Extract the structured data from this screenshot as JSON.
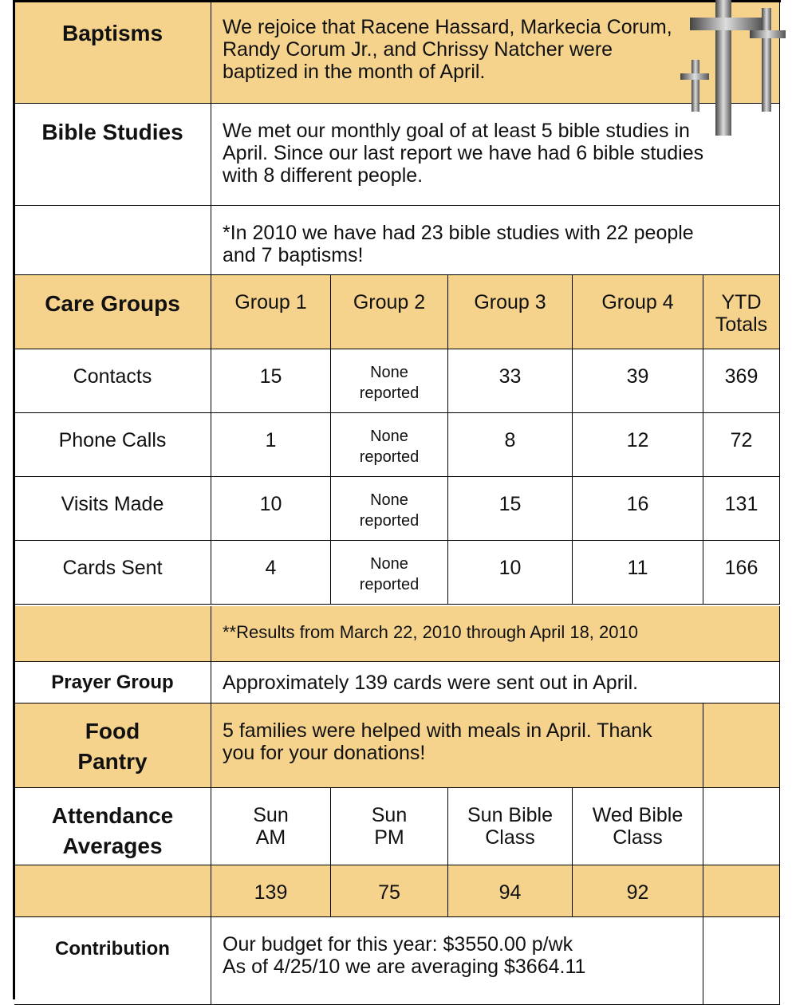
{
  "baptisms": {
    "label": "Baptisms",
    "text": "We rejoice that Racene Hassard, Markecia Corum, Randy Corum Jr., and Chrissy Natcher were baptized in the month of April."
  },
  "bible_studies": {
    "label": "Bible Studies",
    "text": "We met our monthly goal of at least 5 bible studies in April. Since our last report we have had 6 bible studies with 8 different people.",
    "note": "*In 2010 we have had 23 bible studies with 22 people and 7 baptisms!"
  },
  "care_groups": {
    "label": "Care Groups",
    "columns": [
      "Group 1",
      "Group 2",
      "Group 3",
      "Group 4",
      "YTD Totals"
    ],
    "rows": [
      {
        "label": "Contacts",
        "values": [
          15,
          "None reported",
          33,
          39,
          369
        ]
      },
      {
        "label": "Phone Calls",
        "values": [
          1,
          "None reported",
          8,
          12,
          72
        ]
      },
      {
        "label": "Visits Made",
        "values": [
          10,
          "None reported",
          15,
          16,
          131
        ]
      },
      {
        "label": "Cards Sent",
        "values": [
          4,
          "None reported",
          10,
          11,
          166
        ]
      }
    ],
    "note": "**Results from March 22, 2010 through April 18, 2010"
  },
  "prayer_group": {
    "label": "Prayer Group",
    "text": "Approximately 139 cards were sent out in April."
  },
  "food_pantry": {
    "label": "Food Pantry",
    "text": "5 families were helped with meals in April. Thank you for your donations!"
  },
  "attendance": {
    "label": "Attendance Averages",
    "columns": [
      "Sun AM",
      "Sun PM",
      "Sun Bible Class",
      "Wed Bible Class"
    ],
    "values": [
      139,
      75,
      94,
      92
    ]
  },
  "contribution": {
    "label": "Contribution",
    "lines": [
      "Our budget for this year: $3550.00 p/wk",
      "As of 4/25/10 we are averaging $3664.11"
    ]
  }
}
